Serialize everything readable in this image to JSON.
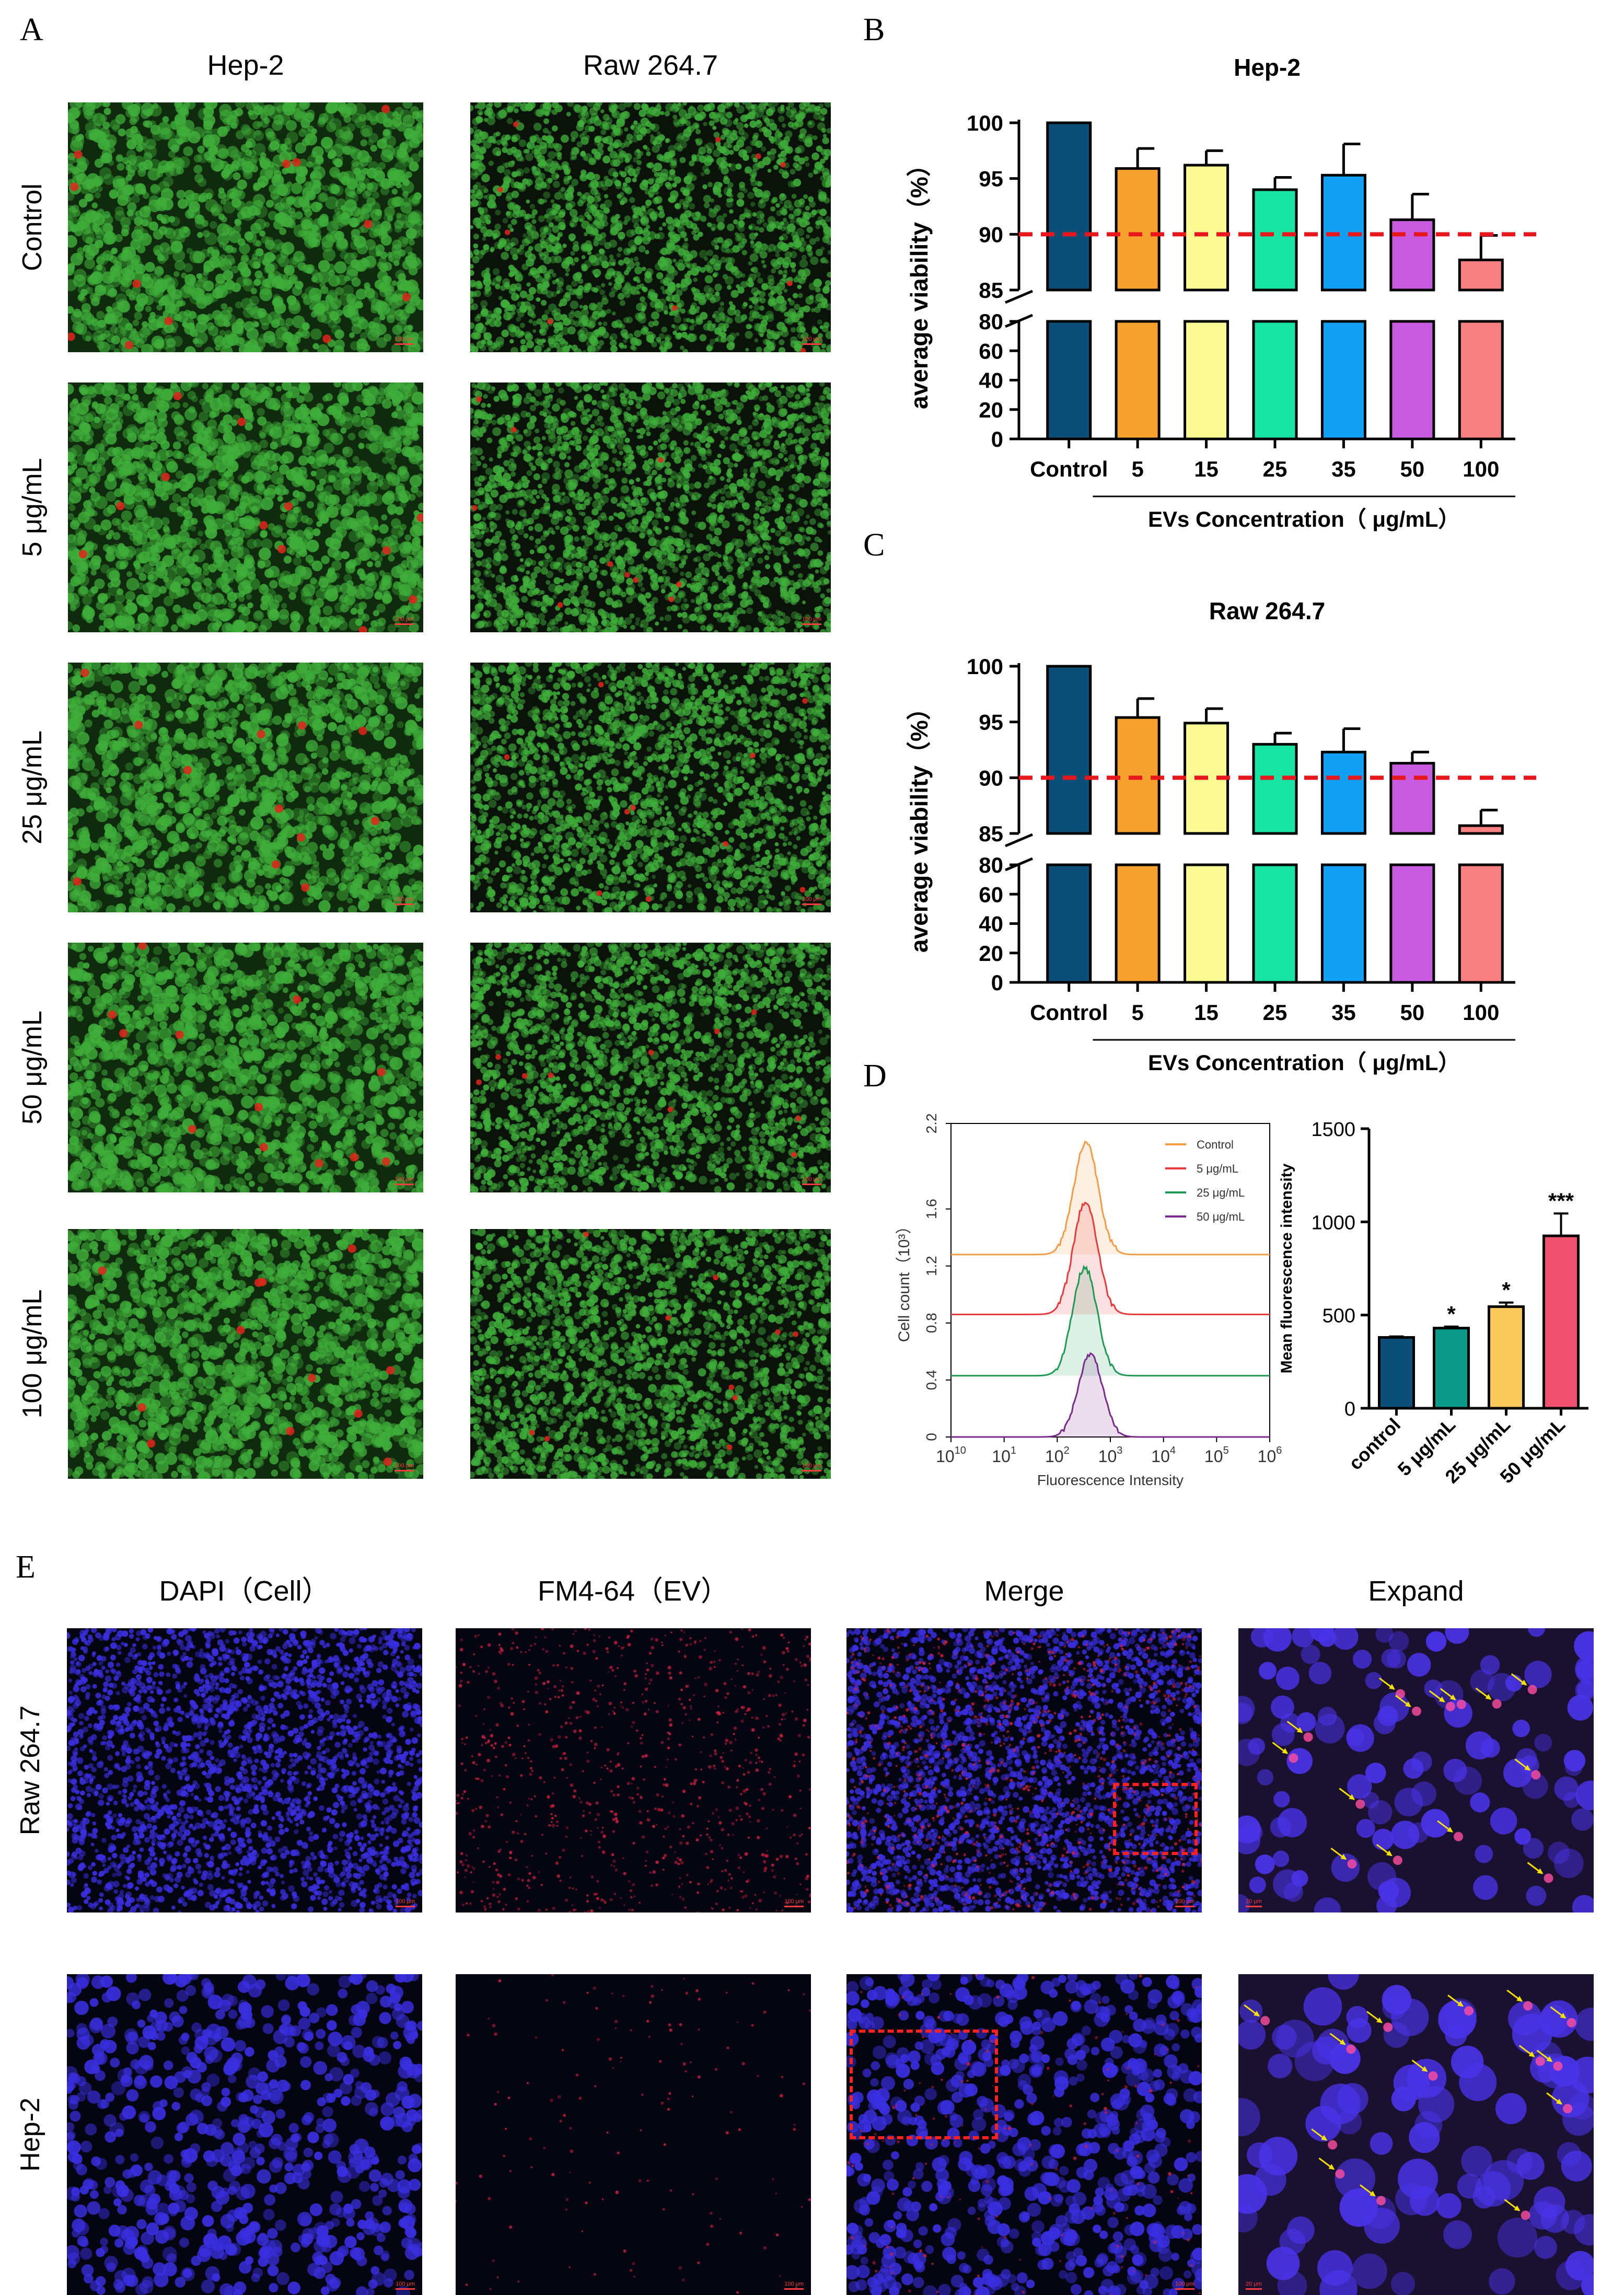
{
  "panels": {
    "A": "A",
    "B": "B",
    "C": "C",
    "D": "D",
    "E": "E"
  },
  "panel_a": {
    "columns": [
      "Hep-2",
      "Raw 264.7"
    ],
    "rows": [
      "Control",
      "5 μg/mL",
      "25 μg/mL",
      "50 μg/mL",
      "100 μg/mL"
    ],
    "scale_label": "100 μm",
    "colors": {
      "live": "#3fae3a",
      "dead": "#e0261c"
    }
  },
  "panel_e": {
    "columns": [
      "DAPI（Cell）",
      "FM4-64（EV）",
      "Merge",
      "Expand"
    ],
    "rows": [
      "Raw 264.7",
      "Hep-2"
    ],
    "scale_label": "100 μm",
    "expand_scale_label": "20 μm",
    "colors": {
      "nucleus": "#3a2fe0",
      "vesicle": "#d02040",
      "arrow": "#f5e000"
    }
  },
  "chart_data": [
    {
      "id": "B",
      "type": "bar",
      "title": "Hep-2",
      "ylabel": "average viability（%）",
      "xlabel": "EVs Concentration（ μg/mL）",
      "categories": [
        "Control",
        "5",
        "15",
        "25",
        "35",
        "50",
        "100"
      ],
      "values": [
        100,
        95.9,
        96.2,
        94.0,
        95.3,
        91.3,
        87.7
      ],
      "errors": [
        0,
        1.8,
        1.3,
        1.1,
        2.8,
        2.3,
        2.2
      ],
      "colors": [
        "#0b4f78",
        "#f6a02e",
        "#fbfa92",
        "#17e3a3",
        "#12a0f5",
        "#c95be0",
        "#f88080"
      ],
      "y_axis_break": {
        "lower": [
          0,
          80
        ],
        "upper": [
          85,
          100
        ]
      },
      "lower_ticks": [
        0,
        20,
        40,
        60,
        80
      ],
      "upper_ticks": [
        85,
        90,
        95,
        100
      ],
      "reference_line": {
        "y": 90,
        "color": "#e8171d",
        "style": "dashed"
      }
    },
    {
      "id": "C",
      "type": "bar",
      "title": "Raw 264.7",
      "ylabel": "average viability（%）",
      "xlabel": "EVs Concentration（ μg/mL）",
      "categories": [
        "Control",
        "5",
        "15",
        "25",
        "35",
        "50",
        "100"
      ],
      "values": [
        100,
        95.4,
        94.9,
        93.0,
        92.3,
        91.3,
        85.7
      ],
      "errors": [
        0,
        1.7,
        1.3,
        1.0,
        2.1,
        1.0,
        1.4
      ],
      "colors": [
        "#0b4f78",
        "#f6a02e",
        "#fbfa92",
        "#17e3a3",
        "#12a0f5",
        "#c95be0",
        "#f88080"
      ],
      "y_axis_break": {
        "lower": [
          0,
          80
        ],
        "upper": [
          85,
          100
        ]
      },
      "lower_ticks": [
        0,
        20,
        40,
        60,
        80
      ],
      "upper_ticks": [
        85,
        90,
        95,
        100
      ],
      "reference_line": {
        "y": 90,
        "color": "#e8171d",
        "style": "dashed"
      }
    },
    {
      "id": "D-histogram",
      "type": "line",
      "ylabel": "Cell count（10³）",
      "xlabel": "Fluorescence Intensity",
      "x_scale": "log",
      "xlim": [
        1,
        1000000
      ],
      "ylim": [
        0,
        2.2
      ],
      "x_ticks": [
        "10",
        "1",
        "2",
        "3",
        "4",
        "5",
        "6"
      ],
      "y_ticks": [
        "0",
        "0.4",
        "0.8",
        "1.2",
        "1.6",
        "2.2"
      ],
      "y_tick_values": [
        0,
        0.4,
        0.8,
        1.2,
        1.6,
        2.2
      ],
      "legend_position": "top-right",
      "series": [
        {
          "name": "Control",
          "color": "#f49b45",
          "offset": 1.28,
          "peak_x": 350,
          "peak_height": 0.79
        },
        {
          "name": "5 μg/mL",
          "color": "#e8393b",
          "offset": 0.86,
          "peak_x": 340,
          "peak_height": 0.79
        },
        {
          "name": "25 μg/mL",
          "color": "#1e9a55",
          "offset": 0.43,
          "peak_x": 330,
          "peak_height": 0.76
        },
        {
          "name": "50 μg/mL",
          "color": "#7a2a8c",
          "offset": 0.0,
          "peak_x": 420,
          "peak_height": 0.58
        }
      ]
    },
    {
      "id": "D-bar",
      "type": "bar",
      "ylabel": "Mean fluorescence intensity",
      "categories": [
        "control",
        "5 μg/mL",
        "25 μg/mL",
        "50 μg/mL"
      ],
      "values": [
        380,
        430,
        545,
        925
      ],
      "errors": [
        5,
        8,
        22,
        120
      ],
      "significance": [
        "",
        "*",
        "*",
        "***"
      ],
      "colors": [
        "#0b4f78",
        "#0b9a8a",
        "#fbc85a",
        "#f2506f"
      ],
      "ylim": [
        0,
        1500
      ],
      "y_ticks": [
        0,
        500,
        1000,
        1500
      ]
    }
  ]
}
